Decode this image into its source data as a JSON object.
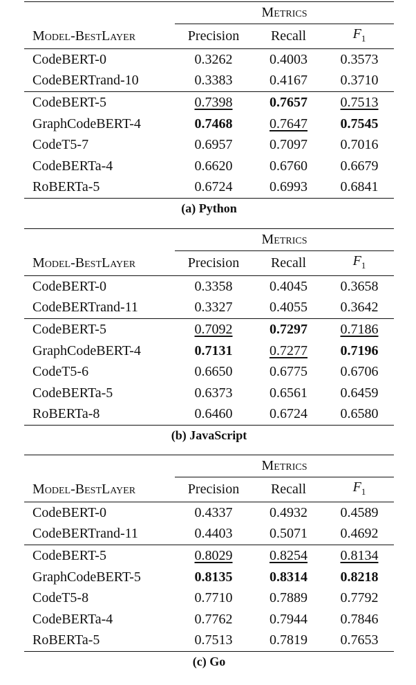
{
  "tables": [
    {
      "group_header": "Metrics",
      "columns": [
        "Model-BestLayer",
        "Precision",
        "Recall",
        {
          "italic": "F",
          "sub": "1"
        }
      ],
      "groups": [
        {
          "rows": [
            {
              "cells": [
                "CodeBERT-0",
                "0.3262",
                "0.4003",
                "0.3573"
              ]
            },
            {
              "cells": [
                "CodeBERTrand-10",
                "0.3383",
                "0.4167",
                "0.3710"
              ]
            }
          ]
        },
        {
          "rows": [
            {
              "cells": [
                "CodeBERT-5",
                "0.7398",
                "0.7657",
                "0.7513"
              ],
              "bold": [
                2
              ],
              "underline": [
                1,
                3
              ]
            },
            {
              "cells": [
                "GraphCodeBERT-4",
                "0.7468",
                "0.7647",
                "0.7545"
              ],
              "bold": [
                1,
                3
              ],
              "underline": [
                2
              ]
            },
            {
              "cells": [
                "CodeT5-7",
                "0.6957",
                "0.7097",
                "0.7016"
              ]
            },
            {
              "cells": [
                "CodeBERTa-4",
                "0.6620",
                "0.6760",
                "0.6679"
              ]
            },
            {
              "cells": [
                "RoBERTa-5",
                "0.6724",
                "0.6993",
                "0.6841"
              ]
            }
          ]
        }
      ],
      "caption": {
        "label": "(a)",
        "text": "Python"
      }
    },
    {
      "group_header": "Metrics",
      "columns": [
        "Model-BestLayer",
        "Precision",
        "Recall",
        {
          "italic": "F",
          "sub": "1"
        }
      ],
      "groups": [
        {
          "rows": [
            {
              "cells": [
                "CodeBERT-0",
                "0.3358",
                "0.4045",
                "0.3658"
              ]
            },
            {
              "cells": [
                "CodeBERTrand-11",
                "0.3327",
                "0.4055",
                "0.3642"
              ]
            }
          ]
        },
        {
          "rows": [
            {
              "cells": [
                "CodeBERT-5",
                "0.7092",
                "0.7297",
                "0.7186"
              ],
              "bold": [
                2
              ],
              "underline": [
                1,
                3
              ]
            },
            {
              "cells": [
                "GraphCodeBERT-4",
                "0.7131",
                "0.7277",
                "0.7196"
              ],
              "bold": [
                1,
                3
              ],
              "underline": [
                2
              ]
            },
            {
              "cells": [
                "CodeT5-6",
                "0.6650",
                "0.6775",
                "0.6706"
              ]
            },
            {
              "cells": [
                "CodeBERTa-5",
                "0.6373",
                "0.6561",
                "0.6459"
              ]
            },
            {
              "cells": [
                "RoBERTa-8",
                "0.6460",
                "0.6724",
                "0.6580"
              ]
            }
          ]
        }
      ],
      "caption": {
        "label": "(b)",
        "text": "JavaScript"
      }
    },
    {
      "group_header": "Metrics",
      "columns": [
        "Model-BestLayer",
        "Precision",
        "Recall",
        {
          "italic": "F",
          "sub": "1"
        }
      ],
      "groups": [
        {
          "rows": [
            {
              "cells": [
                "CodeBERT-0",
                "0.4337",
                "0.4932",
                "0.4589"
              ]
            },
            {
              "cells": [
                "CodeBERTrand-11",
                "0.4403",
                "0.5071",
                "0.4692"
              ]
            }
          ]
        },
        {
          "rows": [
            {
              "cells": [
                "CodeBERT-5",
                "0.8029",
                "0.8254",
                "0.8134"
              ],
              "underline": [
                1,
                2,
                3
              ]
            },
            {
              "cells": [
                "GraphCodeBERT-5",
                "0.8135",
                "0.8314",
                "0.8218"
              ],
              "bold": [
                1,
                2,
                3
              ]
            },
            {
              "cells": [
                "CodeT5-8",
                "0.7710",
                "0.7889",
                "0.7792"
              ]
            },
            {
              "cells": [
                "CodeBERTa-4",
                "0.7762",
                "0.7944",
                "0.7846"
              ]
            },
            {
              "cells": [
                "RoBERTa-5",
                "0.7513",
                "0.7819",
                "0.7653"
              ]
            }
          ]
        }
      ],
      "caption": {
        "label": "(c)",
        "text": "Go"
      }
    }
  ]
}
